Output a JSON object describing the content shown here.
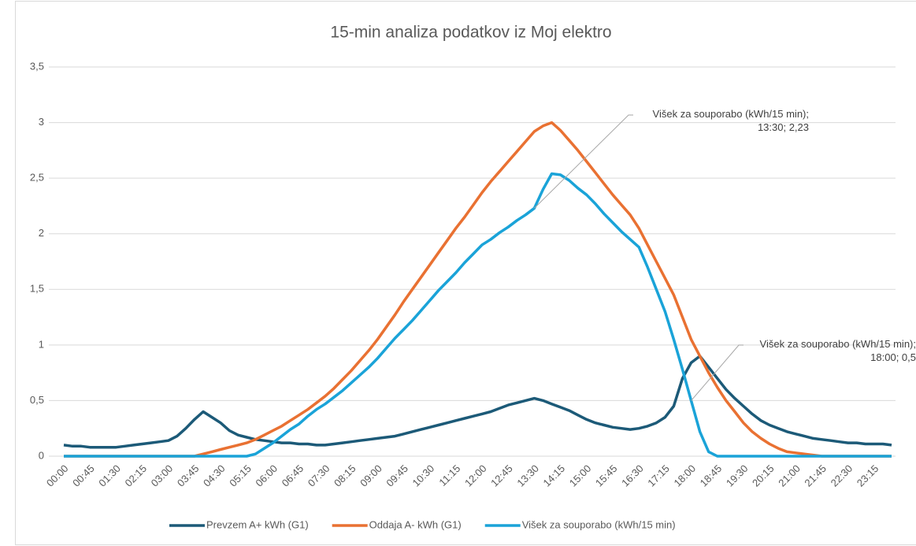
{
  "chart_data": {
    "type": "line",
    "title": "15-min analiza podatkov iz Moj elektro",
    "categories": [
      "00:00",
      null,
      null,
      "00:45",
      null,
      null,
      "01:30",
      null,
      null,
      "02:15",
      null,
      null,
      "03:00",
      null,
      null,
      "03:45",
      null,
      null,
      "04:30",
      null,
      null,
      "05:15",
      null,
      null,
      "06:00",
      null,
      null,
      "06:45",
      null,
      null,
      "07:30",
      null,
      null,
      "08:15",
      null,
      null,
      "09:00",
      null,
      null,
      "09:45",
      null,
      null,
      "10:30",
      null,
      null,
      "11:15",
      null,
      null,
      "12:00",
      null,
      null,
      "12:45",
      null,
      null,
      "13:30",
      null,
      null,
      "14:15",
      null,
      null,
      "15:00",
      null,
      null,
      "15:45",
      null,
      null,
      "16:30",
      null,
      null,
      "17:15",
      null,
      null,
      "18:00",
      null,
      null,
      "18:45",
      null,
      null,
      "19:30",
      null,
      null,
      "20:15",
      null,
      null,
      "21:00",
      null,
      null,
      "21:45",
      null,
      null,
      "22:30",
      null,
      null,
      "23:15",
      null,
      null
    ],
    "series": [
      {
        "name": "Prevzem A+ kWh (G1)",
        "color": "#1c5a78",
        "values": [
          0.1,
          0.09,
          0.09,
          0.08,
          0.08,
          0.08,
          0.08,
          0.09,
          0.1,
          0.11,
          0.12,
          0.13,
          0.14,
          0.18,
          0.25,
          0.33,
          0.4,
          0.35,
          0.3,
          0.23,
          0.19,
          0.17,
          0.15,
          0.14,
          0.13,
          0.12,
          0.12,
          0.11,
          0.11,
          0.1,
          0.1,
          0.11,
          0.12,
          0.13,
          0.14,
          0.15,
          0.16,
          0.17,
          0.18,
          0.2,
          0.22,
          0.24,
          0.26,
          0.28,
          0.3,
          0.32,
          0.34,
          0.36,
          0.38,
          0.4,
          0.43,
          0.46,
          0.48,
          0.5,
          0.52,
          0.5,
          0.47,
          0.44,
          0.41,
          0.37,
          0.33,
          0.3,
          0.28,
          0.26,
          0.25,
          0.24,
          0.25,
          0.27,
          0.3,
          0.35,
          0.45,
          0.7,
          0.84,
          0.9,
          0.8,
          0.7,
          0.6,
          0.52,
          0.45,
          0.38,
          0.32,
          0.28,
          0.25,
          0.22,
          0.2,
          0.18,
          0.16,
          0.15,
          0.14,
          0.13,
          0.12,
          0.12,
          0.11,
          0.11,
          0.11,
          0.1
        ]
      },
      {
        "name": "Oddaja A- kWh (G1)",
        "color": "#e97132",
        "values": [
          0,
          0,
          0,
          0,
          0,
          0,
          0,
          0,
          0,
          0,
          0,
          0,
          0,
          0,
          0,
          0,
          0.02,
          0.04,
          0.06,
          0.08,
          0.1,
          0.12,
          0.15,
          0.19,
          0.23,
          0.27,
          0.32,
          0.37,
          0.42,
          0.48,
          0.54,
          0.61,
          0.69,
          0.77,
          0.86,
          0.95,
          1.05,
          1.16,
          1.27,
          1.39,
          1.5,
          1.61,
          1.72,
          1.83,
          1.94,
          2.05,
          2.15,
          2.26,
          2.37,
          2.47,
          2.56,
          2.65,
          2.74,
          2.83,
          2.92,
          2.97,
          3.0,
          2.93,
          2.84,
          2.75,
          2.65,
          2.55,
          2.45,
          2.35,
          2.26,
          2.17,
          2.05,
          1.9,
          1.75,
          1.6,
          1.45,
          1.25,
          1.05,
          0.9,
          0.75,
          0.62,
          0.5,
          0.4,
          0.3,
          0.22,
          0.16,
          0.11,
          0.07,
          0.04,
          0.03,
          0.02,
          0.01,
          0,
          0,
          0,
          0,
          0,
          0,
          0,
          0,
          0
        ]
      },
      {
        "name": "Višek za souporabo (kWh/15 min)",
        "color": "#1aa3d8",
        "values": [
          0,
          0,
          0,
          0,
          0,
          0,
          0,
          0,
          0,
          0,
          0,
          0,
          0,
          0,
          0,
          0,
          0,
          0,
          0,
          0,
          0,
          0,
          0.02,
          0.07,
          0.12,
          0.18,
          0.24,
          0.29,
          0.36,
          0.42,
          0.47,
          0.53,
          0.59,
          0.66,
          0.73,
          0.8,
          0.88,
          0.97,
          1.06,
          1.14,
          1.22,
          1.31,
          1.4,
          1.49,
          1.57,
          1.65,
          1.74,
          1.82,
          1.9,
          1.95,
          2.01,
          2.06,
          2.12,
          2.17,
          2.23,
          2.4,
          2.54,
          2.53,
          2.48,
          2.41,
          2.35,
          2.27,
          2.18,
          2.1,
          2.02,
          1.95,
          1.88,
          1.7,
          1.5,
          1.3,
          1.05,
          0.78,
          0.5,
          0.22,
          0.04,
          0,
          0,
          0,
          0,
          0,
          0,
          0,
          0,
          0,
          0,
          0,
          0,
          0,
          0,
          0,
          0,
          0,
          0,
          0,
          0,
          0
        ]
      }
    ],
    "annotations": [
      {
        "text": "Višek za souporabo (kWh/15 min); 13:30; 2,23"
      },
      {
        "text": "Višek za souporabo (kWh/15 min); 18:00; 0,5"
      }
    ],
    "ylim": [
      0,
      3.5
    ],
    "yticks": [
      0,
      {
        "value": 0.5,
        "label": "0,5"
      },
      1,
      {
        "value": 1.5,
        "label": "1,5"
      },
      2,
      {
        "value": 2.5,
        "label": "2,5"
      },
      3,
      {
        "value": 3.5,
        "label": "3,5"
      }
    ],
    "grid": true,
    "legend": "bottom"
  }
}
